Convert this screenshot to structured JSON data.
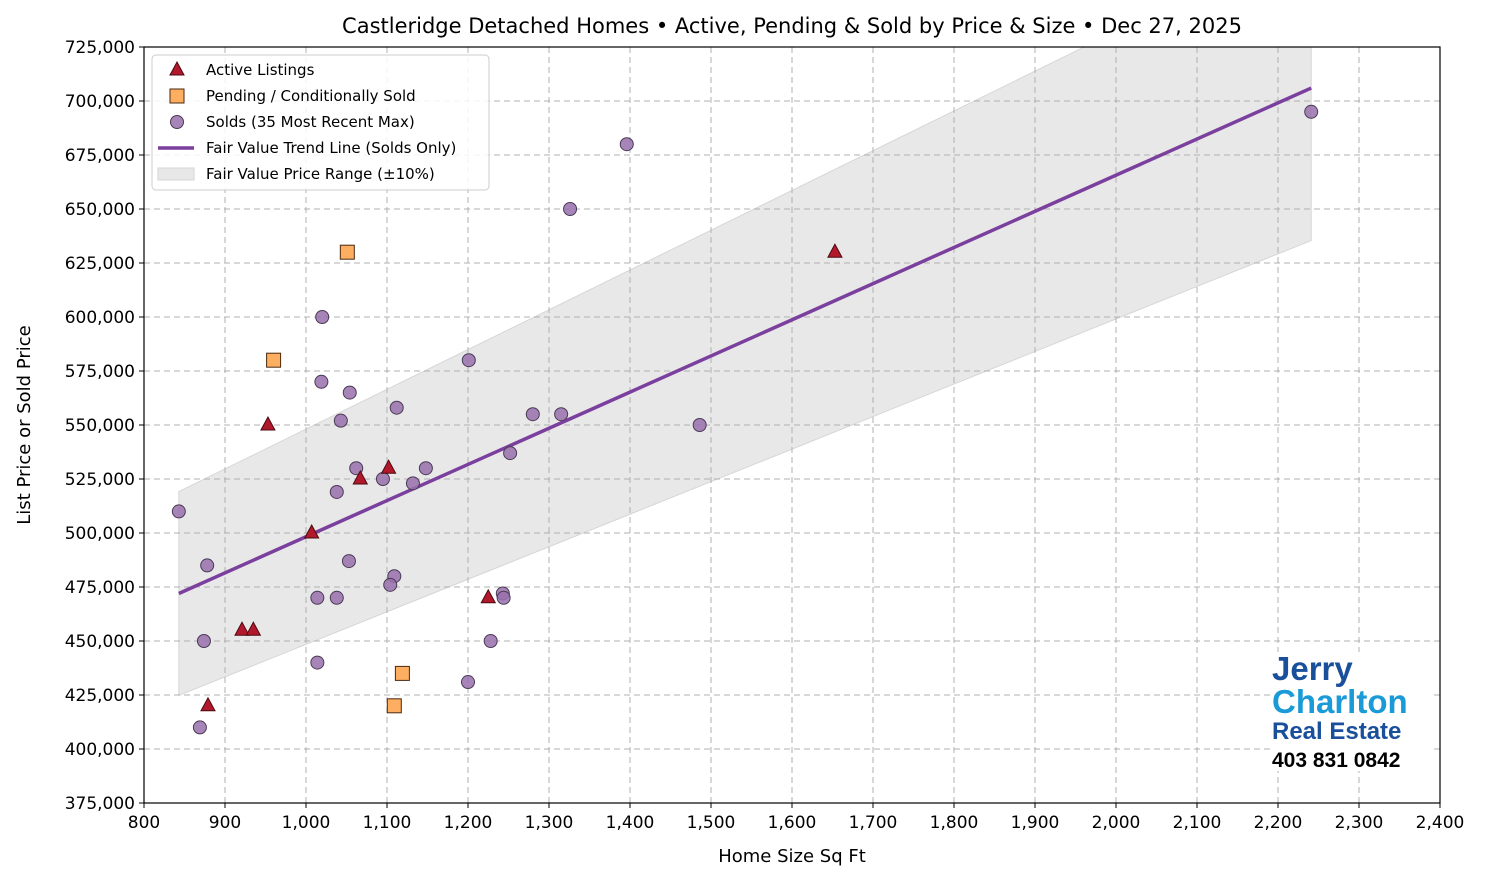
{
  "chart_data": {
    "type": "scatter",
    "title": "Castleridge Detached Homes • Active, Pending & Sold by Price & Size • Dec 27, 2025",
    "xlabel": "Home Size Sq Ft",
    "ylabel": "List Price or Sold Price",
    "xlim": [
      800,
      2400
    ],
    "ylim": [
      375000,
      725000
    ],
    "xticks": [
      800,
      900,
      1000,
      1100,
      1200,
      1300,
      1400,
      1500,
      1600,
      1700,
      1800,
      1900,
      2000,
      2100,
      2200,
      2300,
      2400
    ],
    "yticks": [
      375000,
      400000,
      425000,
      450000,
      475000,
      500000,
      525000,
      550000,
      575000,
      600000,
      625000,
      650000,
      675000,
      700000,
      725000
    ],
    "grid": true,
    "legend_position": "top-left",
    "series": [
      {
        "name": "Active Listings",
        "marker": "triangle",
        "color": "#b2182b",
        "points": [
          [
            953,
            550000
          ],
          [
            1007,
            500000
          ],
          [
            1102,
            530000
          ],
          [
            1067,
            525000
          ],
          [
            921,
            455000
          ],
          [
            935,
            455000
          ],
          [
            879,
            420000
          ],
          [
            1225,
            470000
          ],
          [
            1653,
            630000
          ]
        ]
      },
      {
        "name": "Pending / Conditionally Sold",
        "marker": "square",
        "color": "#fdae61",
        "points": [
          [
            1051,
            630000
          ],
          [
            960,
            580000
          ],
          [
            1119,
            435000
          ],
          [
            1109,
            420000
          ]
        ]
      },
      {
        "name": "Solds (35 Most Recent Max)",
        "marker": "circle",
        "color": "#9970ab",
        "points": [
          [
            843,
            510000
          ],
          [
            878,
            485000
          ],
          [
            874,
            450000
          ],
          [
            869,
            410000
          ],
          [
            1020,
            600000
          ],
          [
            1019,
            570000
          ],
          [
            1054,
            565000
          ],
          [
            1043,
            552000
          ],
          [
            1112,
            558000
          ],
          [
            1062,
            530000
          ],
          [
            1038,
            519000
          ],
          [
            1095,
            525000
          ],
          [
            1132,
            523000
          ],
          [
            1148,
            530000
          ],
          [
            1053,
            487000
          ],
          [
            1109,
            480000
          ],
          [
            1104,
            476000
          ],
          [
            1014,
            470000
          ],
          [
            1038,
            470000
          ],
          [
            1014,
            440000
          ],
          [
            1201,
            580000
          ],
          [
            1200,
            431000
          ],
          [
            1228,
            450000
          ],
          [
            1243,
            472000
          ],
          [
            1244,
            470000
          ],
          [
            1252,
            537000
          ],
          [
            1280,
            555000
          ],
          [
            1315,
            555000
          ],
          [
            1326,
            650000
          ],
          [
            1396,
            680000
          ],
          [
            1486,
            550000
          ],
          [
            2241,
            695000
          ]
        ]
      },
      {
        "name": "Fair Value Trend Line (Solds Only)",
        "type": "line",
        "color": "#7b3f9e",
        "points": [
          [
            843,
            472000
          ],
          [
            2241,
            706000
          ]
        ]
      },
      {
        "name": "Fair Value Price Range (±10%)",
        "type": "band",
        "color": "#e8e8e8",
        "band_pct": 10
      }
    ]
  },
  "logo": {
    "line1": "Jerry",
    "line2": "Charlton",
    "line3": "Real Estate",
    "phone": "403 831 0842"
  }
}
